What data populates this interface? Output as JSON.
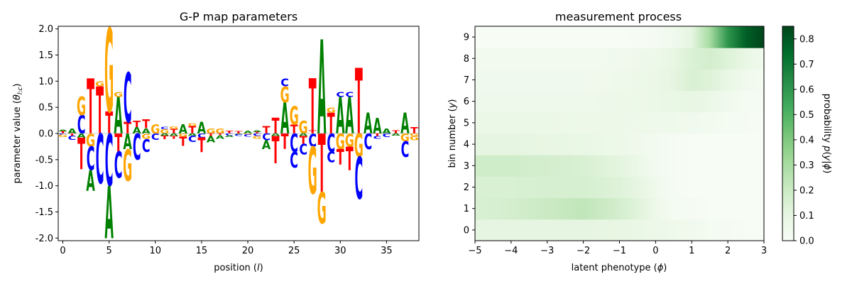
{
  "chart_data": [
    {
      "type": "logo",
      "title": "G-P map parameters",
      "xlabel": "position (l)",
      "ylabel": "parameter value (θ l:c)",
      "xlim": [
        -0.5,
        38.5
      ],
      "ylim": [
        -2.05,
        2.05
      ],
      "xticks": [
        0,
        5,
        10,
        15,
        20,
        25,
        30,
        35
      ],
      "yticks": [
        "-2.0",
        "-1.5",
        "-1.0",
        "-0.5",
        "0.0",
        "0.5",
        "1.0",
        "1.5",
        "2.0"
      ],
      "ytick_values": [
        -2.0,
        -1.5,
        -1.0,
        -0.5,
        0.0,
        0.5,
        1.0,
        1.5,
        2.0
      ],
      "letter_colors": {
        "A": "#008000",
        "C": "#0000ff",
        "G": "#ffa500",
        "T": "#ff0000"
      },
      "stacks": [
        {
          "pos": 0,
          "above": [
            [
              "T",
              0.04
            ],
            [
              "A",
              0.03
            ]
          ],
          "below": [
            [
              "C",
              -0.03
            ],
            [
              "G",
              -0.04
            ]
          ]
        },
        {
          "pos": 1,
          "above": [
            [
              "A",
              0.1
            ]
          ],
          "below": [
            [
              "T",
              -0.04
            ],
            [
              "C",
              -0.08
            ]
          ]
        },
        {
          "pos": 2,
          "above": [
            [
              "C",
              0.35
            ],
            [
              "G",
              0.35
            ]
          ],
          "below": [
            [
              "A",
              -0.08
            ],
            [
              "T",
              -0.6
            ]
          ]
        },
        {
          "pos": 3,
          "above": [
            [
              "T",
              1.05
            ]
          ],
          "below": [
            [
              "G",
              -0.25
            ],
            [
              "C",
              -0.45
            ],
            [
              "A",
              -0.4
            ]
          ]
        },
        {
          "pos": 4,
          "above": [
            [
              "T",
              0.9
            ],
            [
              "G",
              0.1
            ]
          ],
          "below": [
            [
              "C",
              -0.95
            ]
          ]
        },
        {
          "pos": 5,
          "above": [
            [
              "T",
              0.42
            ],
            [
              "G",
              1.6
            ]
          ],
          "below": [
            [
              "C",
              -1.0
            ],
            [
              "A",
              -1.0
            ]
          ]
        },
        {
          "pos": 6,
          "above": [
            [
              "A",
              0.7
            ],
            [
              "G",
              0.1
            ]
          ],
          "below": [
            [
              "T",
              -0.35
            ],
            [
              "C",
              -0.5
            ]
          ]
        },
        {
          "pos": 7,
          "above": [
            [
              "T",
              0.22
            ],
            [
              "C",
              0.95
            ]
          ],
          "below": [
            [
              "A",
              -0.3
            ],
            [
              "G",
              -0.6
            ]
          ]
        },
        {
          "pos": 8,
          "above": [
            [
              "A",
              0.12
            ],
            [
              "T",
              0.12
            ]
          ],
          "below": [
            [
              "C",
              -0.5
            ]
          ]
        },
        {
          "pos": 9,
          "above": [
            [
              "A",
              0.1
            ],
            [
              "T",
              0.17
            ]
          ],
          "below": [
            [
              "G",
              -0.1
            ],
            [
              "C",
              -0.25
            ]
          ]
        },
        {
          "pos": 10,
          "above": [
            [
              "G",
              0.18
            ]
          ],
          "below": [
            [
              "C",
              -0.12
            ]
          ]
        },
        {
          "pos": 11,
          "above": [
            [
              "G",
              0.08
            ],
            [
              "C",
              0.04
            ]
          ],
          "below": [
            [
              "A",
              -0.04
            ],
            [
              "T",
              -0.07
            ]
          ]
        },
        {
          "pos": 12,
          "above": [
            [
              "T",
              0.09
            ],
            [
              "G",
              0.04
            ]
          ],
          "below": [
            [
              "A",
              -0.05
            ],
            [
              "T",
              -0.05
            ]
          ]
        },
        {
          "pos": 13,
          "above": [
            [
              "A",
              0.18
            ]
          ],
          "below": [
            [
              "G",
              -0.06
            ],
            [
              "T",
              -0.18
            ]
          ]
        },
        {
          "pos": 14,
          "above": [
            [
              "T",
              0.14
            ],
            [
              "G",
              0.05
            ]
          ],
          "below": [
            [
              "A",
              -0.04
            ],
            [
              "C",
              -0.12
            ]
          ]
        },
        {
          "pos": 15,
          "above": [
            [
              "A",
              0.22
            ]
          ],
          "below": [
            [
              "C",
              -0.08
            ],
            [
              "T",
              -0.28
            ]
          ]
        },
        {
          "pos": 16,
          "above": [
            [
              "G",
              0.1
            ]
          ],
          "below": [
            [
              "T",
              -0.05
            ],
            [
              "A",
              -0.12
            ]
          ]
        },
        {
          "pos": 17,
          "above": [
            [
              "G",
              0.1
            ]
          ],
          "below": [
            [
              "T",
              -0.03
            ],
            [
              "A",
              -0.07
            ]
          ]
        },
        {
          "pos": 18,
          "above": [
            [
              "T",
              0.05
            ]
          ],
          "below": [
            [
              "C",
              -0.04
            ],
            [
              "A",
              -0.03
            ]
          ]
        },
        {
          "pos": 19,
          "above": [
            [
              "T",
              0.04
            ]
          ],
          "below": [
            [
              "A",
              -0.02
            ],
            [
              "C",
              -0.03
            ]
          ]
        },
        {
          "pos": 20,
          "above": [
            [
              "A",
              0.05
            ]
          ],
          "below": [
            [
              "G",
              -0.02
            ],
            [
              "C",
              -0.04
            ]
          ]
        },
        {
          "pos": 21,
          "above": [
            [
              "T",
              0.03
            ],
            [
              "A",
              0.03
            ]
          ],
          "below": [
            [
              "C",
              -0.05
            ],
            [
              "G",
              -0.05
            ]
          ]
        },
        {
          "pos": 22,
          "above": [
            [
              "T",
              0.14
            ]
          ],
          "below": [
            [
              "C",
              -0.13
            ],
            [
              "A",
              -0.17
            ]
          ]
        },
        {
          "pos": 23,
          "above": [
            [
              "T",
              0.3
            ]
          ],
          "below": [
            [
              "A",
              -0.05
            ],
            [
              "T",
              -0.52
            ]
          ]
        },
        {
          "pos": 24,
          "above": [
            [
              "A",
              0.6
            ],
            [
              "G",
              0.3
            ],
            [
              "C",
              0.15
            ]
          ],
          "below": [
            [
              "T",
              -0.3
            ]
          ]
        },
        {
          "pos": 25,
          "above": [
            [
              "T",
              0.17
            ],
            [
              "G",
              0.35
            ]
          ],
          "below": [
            [
              "C",
              -0.35
            ],
            [
              "C",
              -0.3
            ]
          ]
        },
        {
          "pos": 26,
          "above": [
            [
              "G",
              0.25
            ]
          ],
          "below": [
            [
              "A",
              -0.05
            ],
            [
              "T",
              -0.15
            ],
            [
              "C",
              -0.2
            ]
          ]
        },
        {
          "pos": 27,
          "above": [
            [
              "T",
              0.06
            ],
            [
              "T",
              1.0
            ]
          ],
          "below": [
            [
              "C",
              -0.25
            ],
            [
              "G",
              -0.9
            ]
          ]
        },
        {
          "pos": 28,
          "above": [
            [
              "A",
              1.8
            ]
          ],
          "below": [
            [
              "T",
              -1.12
            ],
            [
              "G",
              -0.6
            ]
          ]
        },
        {
          "pos": 29,
          "above": [
            [
              "T",
              0.4
            ],
            [
              "G",
              0.1
            ]
          ],
          "below": [
            [
              "C",
              -0.35
            ],
            [
              "C",
              -0.2
            ]
          ]
        },
        {
          "pos": 30,
          "above": [
            [
              "A",
              0.7
            ],
            [
              "C",
              0.1
            ]
          ],
          "below": [
            [
              "G",
              -0.3
            ],
            [
              "T",
              -0.3
            ]
          ]
        },
        {
          "pos": 31,
          "above": [
            [
              "A",
              0.7
            ],
            [
              "C",
              0.1
            ]
          ],
          "below": [
            [
              "G",
              -0.25
            ],
            [
              "T",
              -0.45
            ]
          ]
        },
        {
          "pos": 32,
          "above": [
            [
              "T",
              1.25
            ]
          ],
          "below": [
            [
              "G",
              -0.45
            ],
            [
              "C",
              -0.8
            ]
          ]
        },
        {
          "pos": 33,
          "above": [
            [
              "A",
              0.4
            ]
          ],
          "below": [
            [
              "C",
              -0.3
            ]
          ]
        },
        {
          "pos": 34,
          "above": [
            [
              "A",
              0.3
            ]
          ],
          "below": [
            [
              "T",
              -0.05
            ],
            [
              "C",
              -0.05
            ]
          ]
        },
        {
          "pos": 35,
          "above": [
            [
              "A",
              0.1
            ]
          ],
          "below": [
            [
              "C",
              -0.07
            ]
          ]
        },
        {
          "pos": 36,
          "above": [
            [
              "T",
              0.06
            ]
          ],
          "below": [
            [
              "A",
              -0.04
            ]
          ]
        },
        {
          "pos": 37,
          "above": [
            [
              "A",
              0.4
            ]
          ],
          "below": [
            [
              "G",
              -0.15
            ],
            [
              "C",
              -0.3
            ]
          ]
        },
        {
          "pos": 38,
          "above": [
            [
              "T",
              0.12
            ]
          ],
          "below": [
            [
              "G",
              -0.05
            ],
            [
              "G",
              -0.08
            ]
          ]
        }
      ]
    },
    {
      "type": "heatmap",
      "title": "measurement process",
      "xlabel": "latent phenotype (ϕ)",
      "ylabel": "bin number (y)",
      "xlim": [
        -5,
        3
      ],
      "ylim": [
        -0.5,
        9.5
      ],
      "xticks": [
        "−5",
        "−4",
        "−3",
        "−2",
        "−1",
        "0",
        "1",
        "2",
        "3"
      ],
      "xtick_values": [
        -5,
        -4,
        -3,
        -2,
        -1,
        0,
        1,
        2,
        3
      ],
      "yticks": [
        "0",
        "1",
        "2",
        "3",
        "4",
        "5",
        "6",
        "7",
        "8",
        "9"
      ],
      "colormap": "Greens",
      "vmin": 0,
      "vmax": 0.85,
      "colorbar_label": "probability p(y|ϕ)",
      "colorbar_ticks": [
        "0.0",
        "0.1",
        "0.2",
        "0.3",
        "0.4",
        "0.5",
        "0.6",
        "0.7",
        "0.8"
      ],
      "colorbar_tick_values": [
        0.0,
        0.1,
        0.2,
        0.3,
        0.4,
        0.5,
        0.6,
        0.7,
        0.8
      ],
      "phi": [
        -5,
        -4,
        -3,
        -2,
        -1,
        0,
        0.5,
        1,
        1.5,
        2,
        2.5,
        3
      ],
      "probabilities": [
        [
          0.1,
          0.1,
          0.1,
          0.1,
          0.09,
          0.06,
          0.05,
          0.04,
          0.02,
          0.01,
          0.0,
          0.0
        ],
        [
          0.15,
          0.17,
          0.2,
          0.23,
          0.17,
          0.06,
          0.02,
          0.01,
          0.0,
          0.0,
          0.0,
          0.0
        ],
        [
          0.15,
          0.15,
          0.16,
          0.16,
          0.13,
          0.05,
          0.01,
          0.0,
          0.0,
          0.0,
          0.0,
          0.0
        ],
        [
          0.18,
          0.18,
          0.17,
          0.15,
          0.11,
          0.03,
          0.01,
          0.0,
          0.0,
          0.0,
          0.0,
          0.0
        ],
        [
          0.1,
          0.1,
          0.09,
          0.08,
          0.06,
          0.03,
          0.01,
          0.0,
          0.0,
          0.0,
          0.0,
          0.0
        ],
        [
          0.07,
          0.07,
          0.07,
          0.06,
          0.06,
          0.05,
          0.05,
          0.04,
          0.03,
          0.02,
          0.01,
          0.0
        ],
        [
          0.05,
          0.05,
          0.05,
          0.05,
          0.06,
          0.07,
          0.08,
          0.09,
          0.07,
          0.04,
          0.02,
          0.01
        ],
        [
          0.04,
          0.04,
          0.04,
          0.04,
          0.05,
          0.07,
          0.1,
          0.15,
          0.13,
          0.08,
          0.04,
          0.02
        ],
        [
          0.03,
          0.03,
          0.03,
          0.03,
          0.04,
          0.06,
          0.09,
          0.14,
          0.17,
          0.13,
          0.08,
          0.04
        ],
        [
          0.0,
          0.0,
          0.0,
          0.0,
          0.0,
          0.01,
          0.04,
          0.1,
          0.3,
          0.6,
          0.78,
          0.85
        ]
      ]
    }
  ]
}
